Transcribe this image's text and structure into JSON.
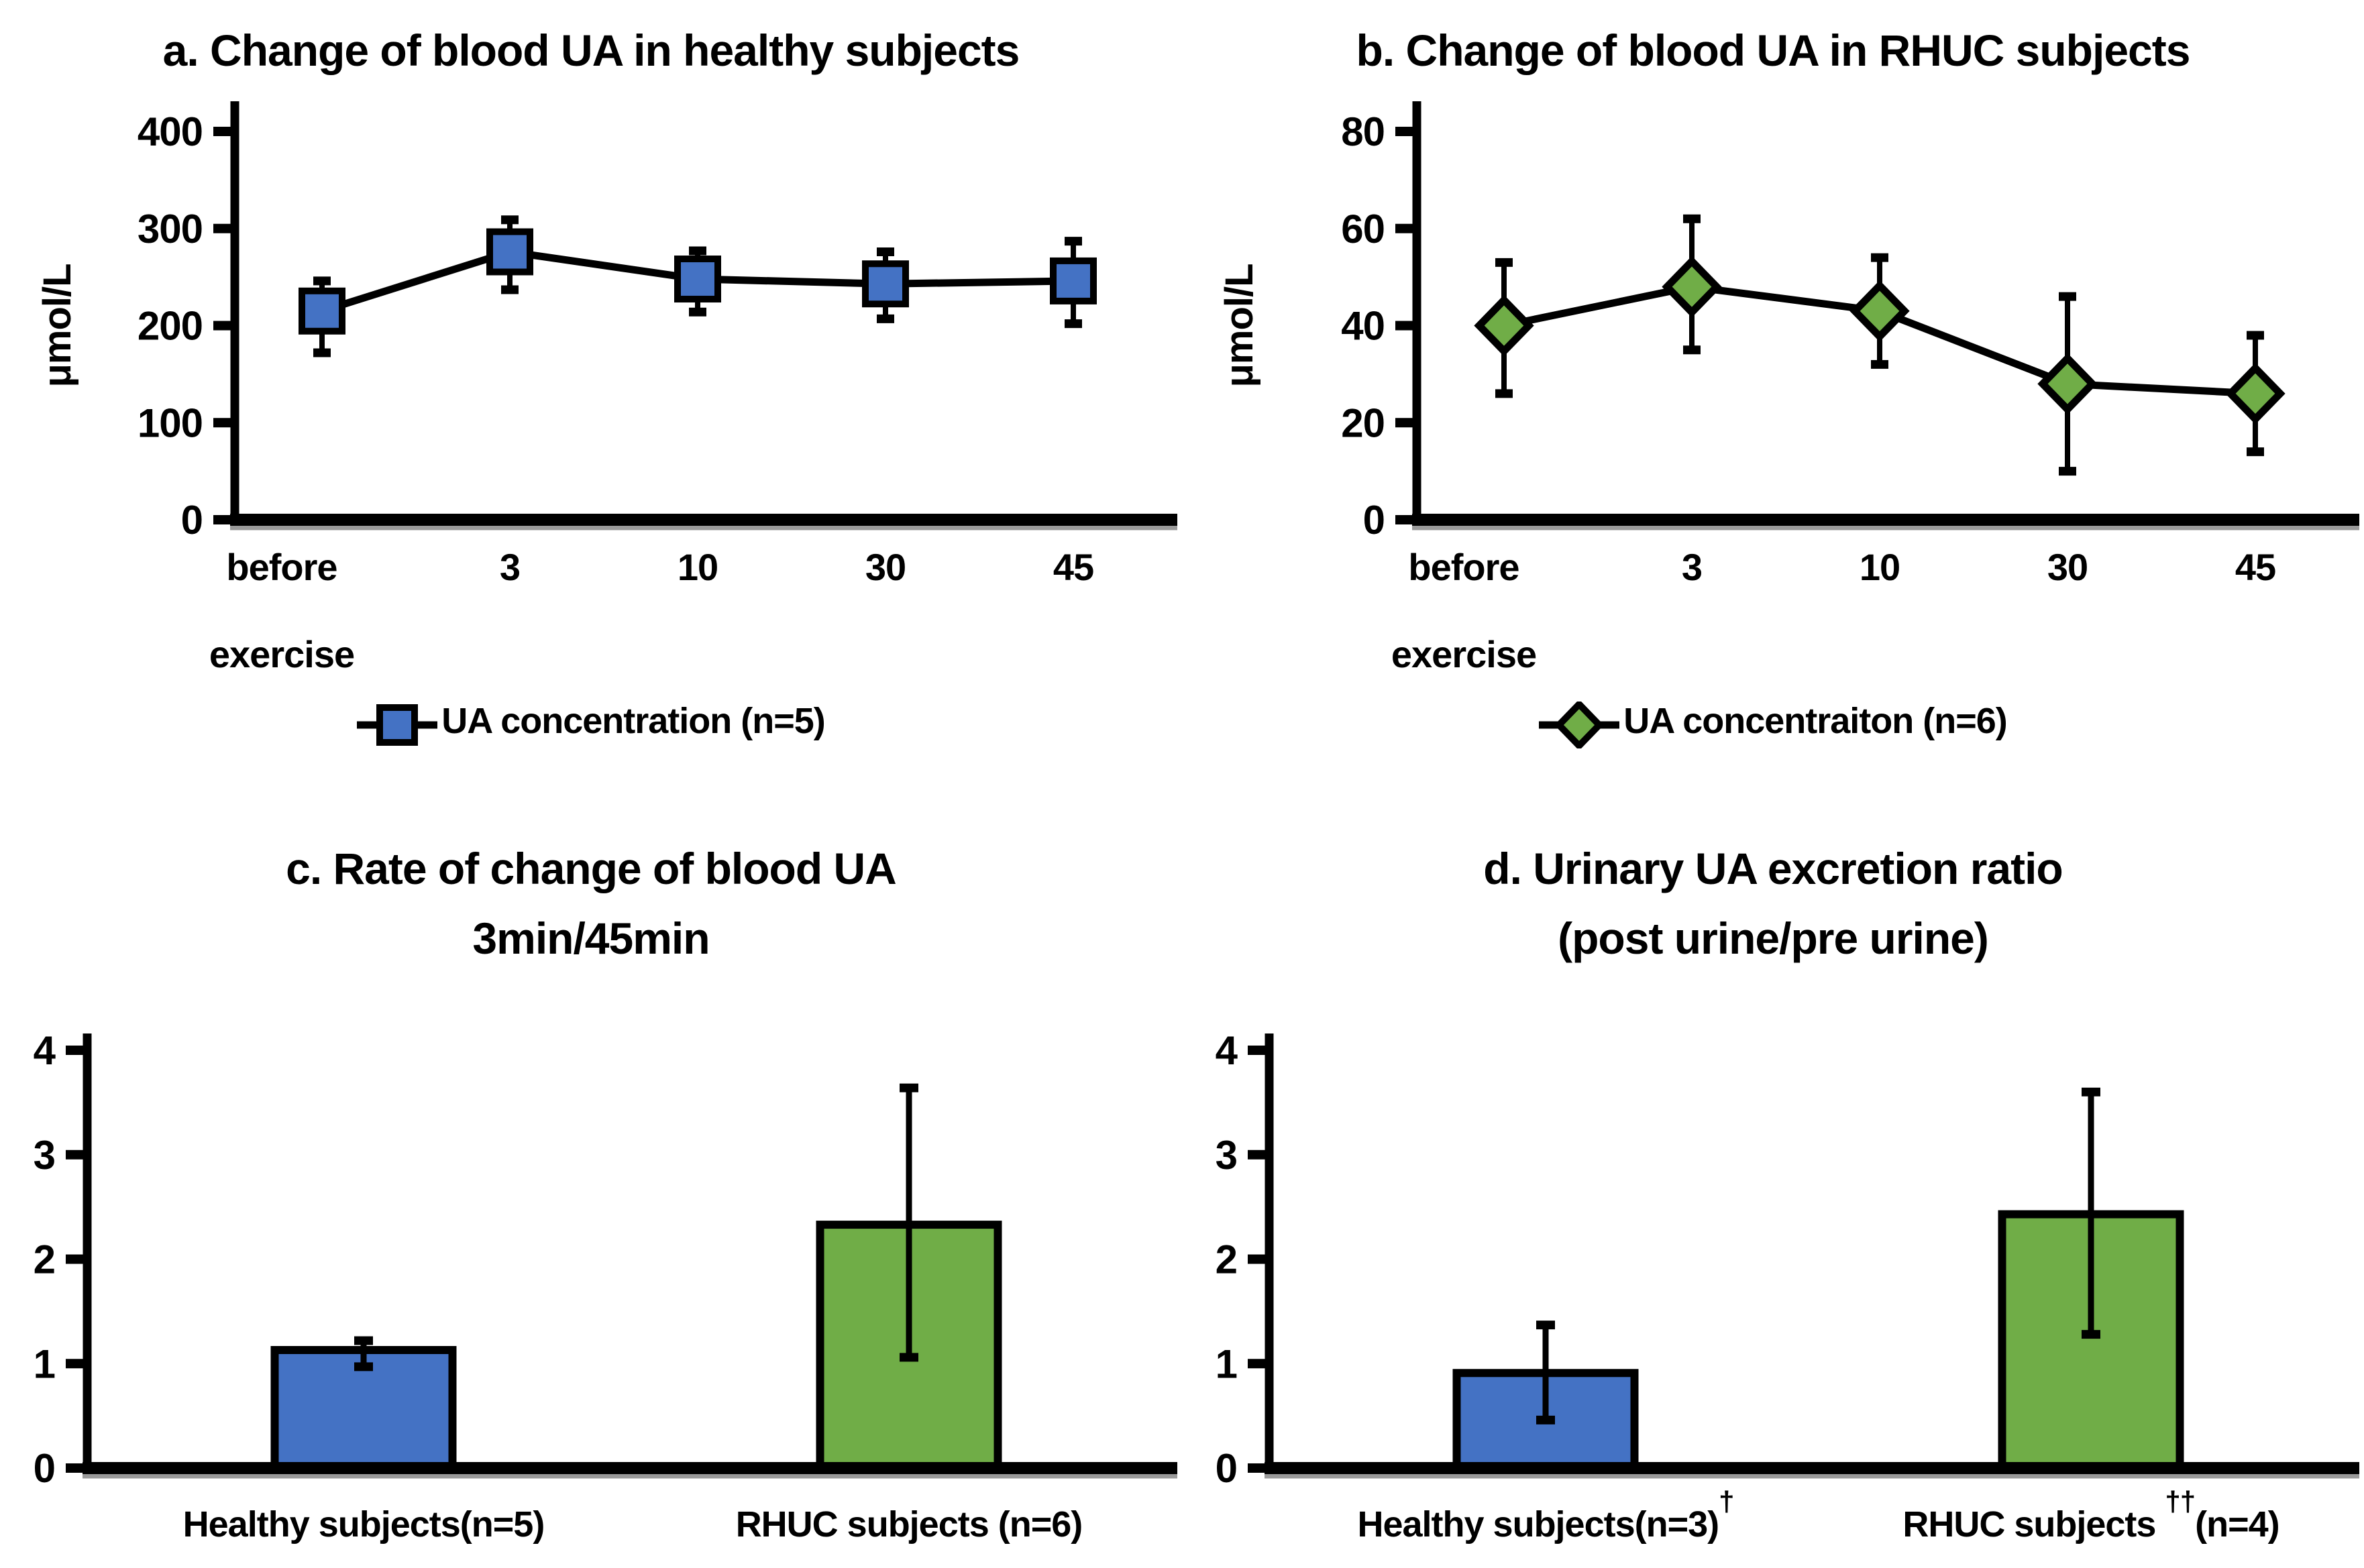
{
  "colors": {
    "blue": "#4472C4",
    "green": "#70AD47",
    "axis": "#000000",
    "axis_shadow": "#9a9a9a",
    "background": "#FFFFFF"
  },
  "chart_data": [
    {
      "id": "a",
      "type": "line",
      "title_lines": [
        "a. Change of blood UA in healthy subjects"
      ],
      "ylabel": "μmol/L",
      "xlabel": "",
      "ylim": [
        0,
        400
      ],
      "yticks": [
        0,
        100,
        200,
        300,
        400
      ],
      "grid": false,
      "legend_position": "bottom",
      "categories": [
        "before exercise",
        "3",
        "10",
        "30",
        "45"
      ],
      "series": [
        {
          "name": "UA concentration (n=5)",
          "marker": "square",
          "color": "#4472C4",
          "values": [
            215,
            276,
            248,
            243,
            246
          ],
          "upper": [
            246,
            309,
            277,
            276,
            287
          ],
          "lower": [
            172,
            237,
            214,
            207,
            202
          ]
        }
      ],
      "legend": "UA concentration (n=5)"
    },
    {
      "id": "b",
      "type": "line",
      "title_lines": [
        "b. Change of blood UA in RHUC subjects"
      ],
      "ylabel": "μmol/L",
      "xlabel": "",
      "ylim": [
        0,
        80
      ],
      "yticks": [
        0,
        20,
        40,
        60,
        80
      ],
      "grid": false,
      "legend_position": "bottom",
      "categories": [
        "before exercise",
        "3",
        "10",
        "30",
        "45"
      ],
      "series": [
        {
          "name": "UA concentraiton (n=6)",
          "marker": "diamond",
          "color": "#70AD47",
          "values": [
            40,
            48,
            43,
            28,
            26
          ],
          "upper": [
            53,
            62,
            54,
            46,
            38
          ],
          "lower": [
            26,
            35,
            32,
            10,
            14
          ]
        }
      ],
      "legend": "UA concentraiton (n=6)"
    },
    {
      "id": "c",
      "type": "bar",
      "title_lines": [
        "c. Rate of change of blood UA",
        "3min/45min"
      ],
      "ylabel": "",
      "xlabel": "",
      "ylim": [
        0,
        4
      ],
      "yticks": [
        0,
        1,
        2,
        3,
        4
      ],
      "grid": false,
      "bars": [
        {
          "label": {
            "pre": "Healthy subjects(n=5)",
            "sup": "",
            "post": ""
          },
          "color": "#4472C4",
          "value": 1.13,
          "err_up": 1.22,
          "err_down": 0.97
        },
        {
          "label": {
            "pre": "RHUC subjects (n=6)",
            "sup": "",
            "post": ""
          },
          "color": "#70AD47",
          "value": 2.33,
          "err_up": 3.64,
          "err_down": 1.06
        }
      ]
    },
    {
      "id": "d",
      "type": "bar",
      "title_lines": [
        "d. Urinary UA excretion ratio",
        "(post urine/pre urine)"
      ],
      "ylabel": "",
      "xlabel": "",
      "ylim": [
        0,
        4
      ],
      "yticks": [
        0,
        1,
        2,
        3,
        4
      ],
      "grid": false,
      "bars": [
        {
          "label": {
            "pre": "Healthy subjects(n=3)",
            "sup": "†",
            "post": ""
          },
          "color": "#4472C4",
          "value": 0.91,
          "err_up": 1.37,
          "err_down": 0.46
        },
        {
          "label": {
            "pre": "RHUC subjects ",
            "sup": "††",
            "post": "(n=4)"
          },
          "color": "#70AD47",
          "value": 2.43,
          "err_up": 3.6,
          "err_down": 1.28
        }
      ]
    }
  ]
}
